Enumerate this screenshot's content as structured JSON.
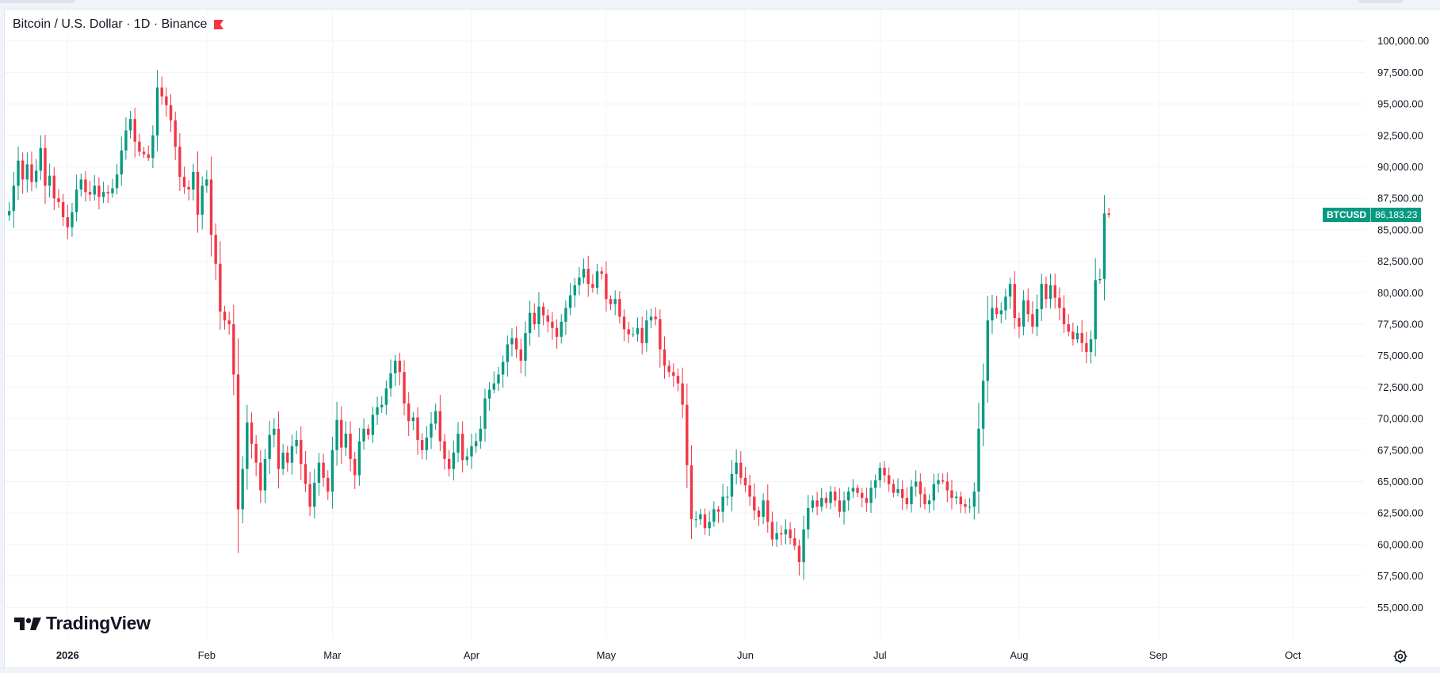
{
  "header": {
    "symbol_title": "Bitcoin / U.S. Dollar · 1D · Binance",
    "flag_icon": "flag-icon"
  },
  "branding": {
    "text": "TradingView",
    "icon": "tradingview-logo-icon"
  },
  "last_price": {
    "symbol": "BTCUSD",
    "value": "86,183.23"
  },
  "colors": {
    "up": "#089981",
    "down": "#F23645",
    "grid": "#f0f3fa",
    "text": "#131722",
    "flag": "#F23645"
  },
  "chart_data": {
    "type": "candlestick",
    "symbol": "BTCUSD",
    "interval": "1D",
    "exchange": "Binance",
    "x_range": [
      "2025-12-18",
      "2026-10-17"
    ],
    "ylim": [
      52500,
      102500
    ],
    "y_ticks": [
      55000,
      57500,
      60000,
      62500,
      65000,
      67500,
      70000,
      72500,
      75000,
      77500,
      80000,
      82500,
      85000,
      87500,
      90000,
      92500,
      95000,
      97500,
      100000
    ],
    "y_tick_labels": [
      "55,000.00",
      "57,500.00",
      "60,000.00",
      "62,500.00",
      "65,000.00",
      "67,500.00",
      "70,000.00",
      "72,500.00",
      "75,000.00",
      "77,500.00",
      "80,000.00",
      "82,500.00",
      "85,000.00",
      "87,500.00",
      "90,000.00",
      "92,500.00",
      "95,000.00",
      "97,500.00",
      "100,000.00"
    ],
    "x_ticks": [
      {
        "date": "2026-01-01",
        "label": "2026",
        "bold": true
      },
      {
        "date": "2026-02-01",
        "label": "Feb"
      },
      {
        "date": "2026-03-01",
        "label": "Mar"
      },
      {
        "date": "2026-04-01",
        "label": "Apr"
      },
      {
        "date": "2026-05-01",
        "label": "May"
      },
      {
        "date": "2026-06-01",
        "label": "Jun"
      },
      {
        "date": "2026-07-01",
        "label": "Jul"
      },
      {
        "date": "2026-08-01",
        "label": "Aug"
      },
      {
        "date": "2026-09-01",
        "label": "Sep"
      },
      {
        "date": "2026-10-01",
        "label": "Oct"
      }
    ],
    "last_close": 86183.23,
    "grid": true,
    "close_path": {
      "start_date": "2025-12-19",
      "closes": [
        86500,
        88500,
        90500,
        89000,
        90200,
        88800,
        89700,
        91500,
        88500,
        89300,
        87500,
        87200,
        86000,
        85200,
        86400,
        88200,
        89000,
        88000,
        87800,
        88500,
        87600,
        88000,
        87900,
        88300,
        89400,
        91300,
        92900,
        93800,
        92000,
        91200,
        91000,
        90700,
        92500,
        96300,
        95600,
        94900,
        93700,
        91600,
        89200,
        88400,
        88200,
        89600,
        86200,
        88500,
        89000,
        84600,
        82300,
        78500,
        77800,
        77500,
        73500,
        62800,
        66000,
        69700,
        68000,
        66500,
        64300,
        66800,
        68700,
        69200,
        66000,
        67300,
        66500,
        67800,
        68300,
        66400,
        64800,
        63000,
        64900,
        66500,
        65300,
        64200,
        67500,
        69900,
        67700,
        68800,
        66800,
        65500,
        68200,
        69200,
        68700,
        70300,
        70900,
        71100,
        72400,
        73600,
        74600,
        73700,
        71200,
        69800,
        70100,
        68300,
        67500,
        68500,
        69600,
        70600,
        68200,
        66800,
        66000,
        67300,
        68800,
        66700,
        67000,
        67800,
        68200,
        69200,
        71600,
        72300,
        72800,
        73500,
        74500,
        75900,
        76400,
        75500,
        74600,
        76800,
        78400,
        77500,
        78900,
        78200,
        77700,
        77200,
        76500,
        77700,
        78800,
        79800,
        80600,
        81200,
        81900,
        80700,
        80400,
        81700,
        81500,
        79500,
        79100,
        79500,
        78100,
        77100,
        76700,
        76700,
        77200,
        76000,
        77800,
        78100,
        77900,
        75500,
        74200,
        73700,
        73400,
        72800,
        71100,
        66300,
        62000,
        62000,
        62400,
        61300,
        61800,
        62800,
        62600,
        63800,
        63800,
        65600,
        66500,
        65300,
        64700,
        63800,
        62700,
        62200,
        63500,
        61800,
        60400,
        60900,
        60800,
        61200,
        60500,
        59900,
        58600,
        61200,
        62900,
        63500,
        63000,
        63700,
        63300,
        64200,
        63500,
        62600,
        63500,
        64200,
        64500,
        64100,
        63700,
        63300,
        64500,
        65100,
        66100,
        65500,
        64800,
        64100,
        64400,
        63700,
        63200,
        64600,
        65000,
        64000,
        63200,
        63500,
        64800,
        65100,
        65000,
        64300,
        63700,
        63800,
        63200,
        63000,
        63000,
        64200,
        69200,
        73000,
        77800,
        78800,
        78300,
        78600,
        79700,
        80700,
        78000,
        77300,
        79400,
        78300,
        77300,
        78700,
        80700,
        79500,
        80600,
        79600,
        78800,
        77500,
        76900,
        76300,
        76800,
        76000,
        75300,
        76300,
        81000,
        81100,
        86300,
        86183.23
      ]
    }
  }
}
